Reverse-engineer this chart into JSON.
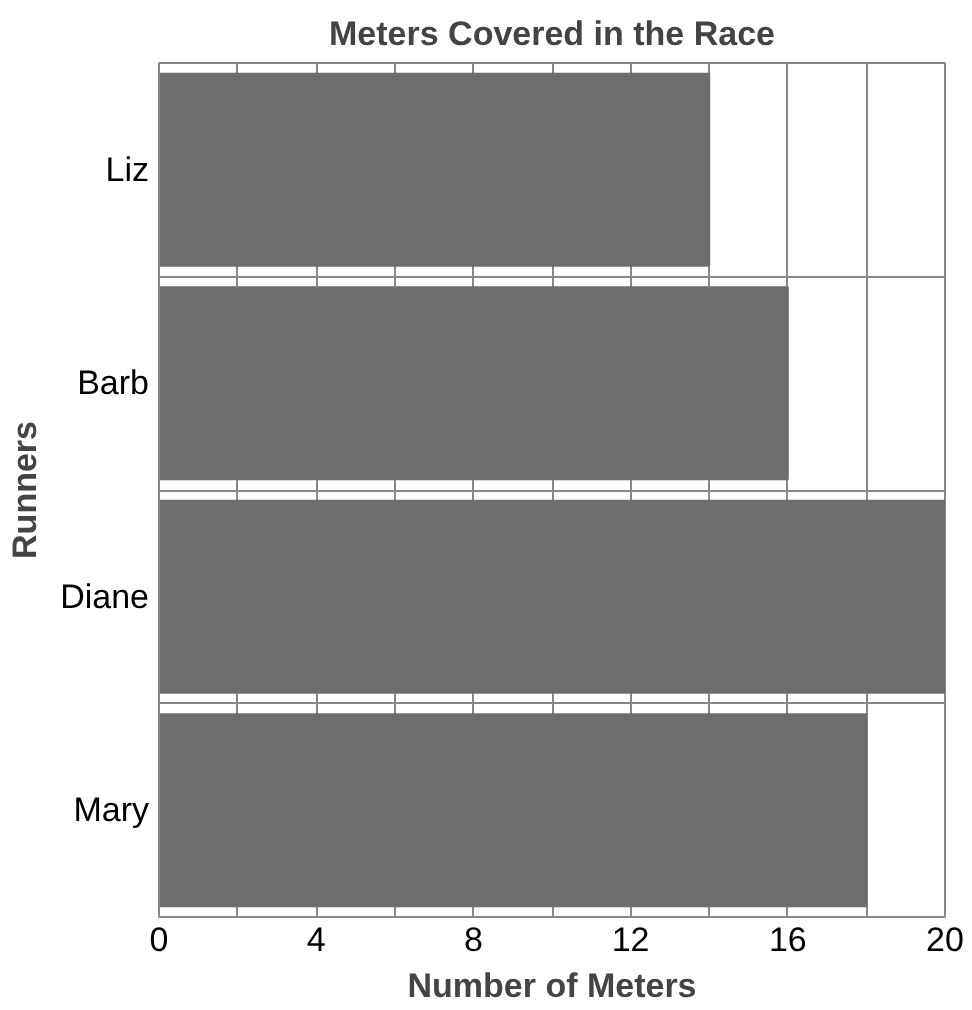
{
  "chart_data": {
    "type": "bar",
    "orientation": "horizontal",
    "title": "Meters Covered in the Race",
    "xlabel": "Number of Meters",
    "ylabel": "Runners",
    "categories": [
      "Liz",
      "Barb",
      "Diane",
      "Mary"
    ],
    "values": [
      14,
      16,
      20,
      18
    ],
    "color": "#6d6d6d",
    "xlim": [
      0,
      20
    ],
    "xticks": [
      0,
      {
        "value": 2,
        "label": null
      },
      4,
      {
        "value": 6,
        "label": null
      },
      8,
      {
        "value": 10,
        "label": null
      },
      12,
      {
        "value": 14,
        "label": null
      },
      16,
      {
        "value": 18,
        "label": null
      },
      20
    ],
    "grid": true
  }
}
